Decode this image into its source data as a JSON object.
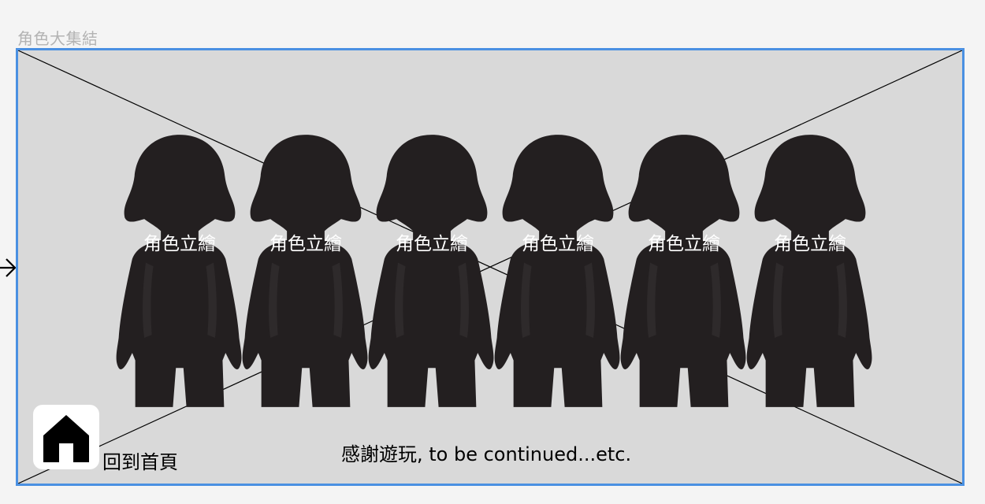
{
  "frame": {
    "title": "角色大集結"
  },
  "characters": [
    {
      "label": "角色立繪"
    },
    {
      "label": "角色立繪"
    },
    {
      "label": "角色立繪"
    },
    {
      "label": "角色立繪"
    },
    {
      "label": "角色立繪"
    },
    {
      "label": "角色立繪"
    }
  ],
  "home": {
    "label": "回到首頁",
    "icon": "home-icon"
  },
  "thanks": {
    "text": "感謝遊玩, to be continued...etc."
  },
  "colors": {
    "frame_border": "#4a90e2",
    "placeholder_fill": "#d9d9d9",
    "silhouette": "#231f20"
  }
}
